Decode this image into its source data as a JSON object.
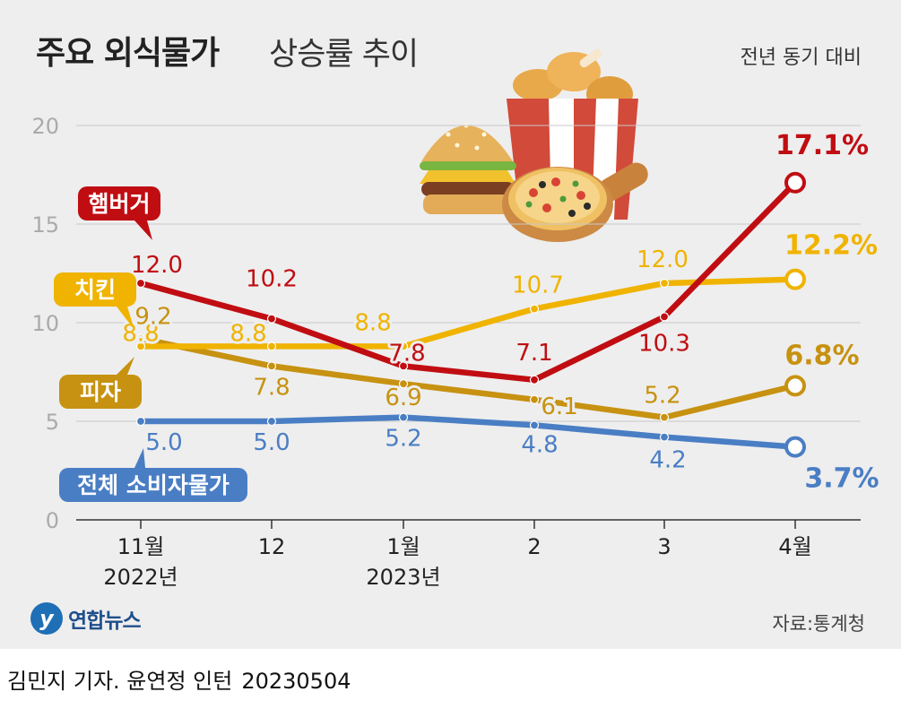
{
  "header": {
    "title_bold": "주요 외식물가",
    "title_light": "상승률 추이",
    "subtitle": "전년 동기 대비"
  },
  "footer": {
    "source": "자료:통계청",
    "credit": "김민지 기자. 윤연정 인턴",
    "date": "20230504",
    "logo_text": "연합뉴스"
  },
  "chart_data": {
    "type": "line",
    "title": "주요 외식물가 상승률 추이",
    "subtitle": "전년 동기 대비",
    "categories": [
      "11월\n2022년",
      "12",
      "1월\n2023년",
      "2",
      "3",
      "4월"
    ],
    "ylim": [
      0,
      20
    ],
    "yticks": [
      0,
      5,
      10,
      15,
      20
    ],
    "grid": true,
    "series": [
      {
        "name": "햄버거",
        "color": "#c00d12",
        "values": [
          12.0,
          10.2,
          7.8,
          7.1,
          10.3,
          17.1
        ],
        "labels": [
          "12.0",
          "10.2",
          "7.8",
          "7.1",
          "10.3",
          "17.1%"
        ]
      },
      {
        "name": "치킨",
        "color": "#f0b300",
        "values": [
          8.8,
          8.8,
          8.8,
          10.7,
          12.0,
          12.2
        ],
        "labels": [
          "8.8",
          "8.8",
          "8.8",
          "10.7",
          "12.0",
          "12.2%"
        ]
      },
      {
        "name": "피자",
        "color": "#c79211",
        "values": [
          9.2,
          7.8,
          6.9,
          6.1,
          5.2,
          6.8
        ],
        "labels": [
          "9.2",
          "7.8",
          "6.9",
          "6.1",
          "5.2",
          "6.8%"
        ]
      },
      {
        "name": "전체 소비자물가",
        "color": "#4a7ec4",
        "values": [
          5.0,
          5.0,
          5.2,
          4.8,
          4.2,
          3.7
        ],
        "labels": [
          "5.0",
          "5.0",
          "5.2",
          "4.8",
          "4.2",
          "3.7%"
        ]
      }
    ]
  }
}
